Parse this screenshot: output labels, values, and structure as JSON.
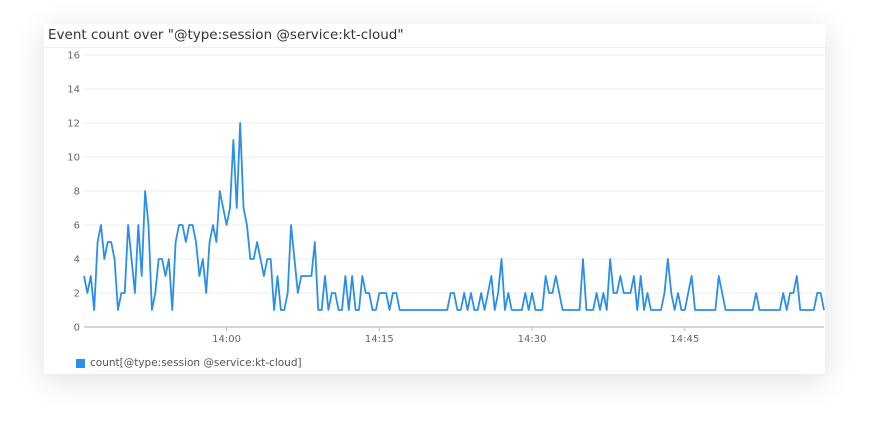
{
  "title": "Event count over \"@type:session @service:kt-cloud\"",
  "colors": {
    "series": "#2b8fe8",
    "grid": "#ececef",
    "axis": "#b9bcc2",
    "text": "#666666"
  },
  "chart_data": {
    "type": "line",
    "title": "Event count over \"@type:session @service:kt-cloud\"",
    "xlabel": "",
    "ylabel": "",
    "x_start": "13:46:00",
    "x_interval_seconds": 20,
    "xlim": [
      "13:46:00",
      "14:58:40"
    ],
    "ylim": [
      0,
      16
    ],
    "grid": true,
    "legend_position": "bottom-left",
    "y_ticks": [
      "0",
      "2",
      "4",
      "6",
      "8",
      "10",
      "12",
      "14",
      "16"
    ],
    "x_ticks": [
      {
        "label": "14:00",
        "time": "14:00:00"
      },
      {
        "label": "14:15",
        "time": "14:15:00"
      },
      {
        "label": "14:30",
        "time": "14:30:00"
      },
      {
        "label": "14:45",
        "time": "14:45:00"
      }
    ],
    "series": [
      {
        "name": "count[@type:session @service:kt-cloud]",
        "values": [
          3,
          2,
          3,
          1,
          5,
          6,
          4,
          5,
          5,
          4,
          1,
          2,
          2,
          6,
          4,
          2,
          6,
          3,
          8,
          6,
          1,
          2,
          4,
          4,
          3,
          4,
          1,
          5,
          6,
          6,
          5,
          6,
          6,
          5,
          3,
          4,
          2,
          5,
          6,
          5,
          8,
          7,
          6,
          7,
          11,
          7,
          12,
          7,
          6,
          4,
          4,
          5,
          4,
          3,
          4,
          4,
          1,
          3,
          1,
          1,
          2,
          6,
          4,
          2,
          3,
          3,
          3,
          3,
          5,
          1,
          1,
          3,
          1,
          2,
          2,
          1,
          1,
          3,
          1,
          3,
          1,
          1,
          3,
          2,
          2,
          1,
          1,
          2,
          2,
          2,
          1,
          2,
          2,
          1,
          1,
          1,
          1,
          1,
          1,
          1,
          1,
          1,
          1,
          1,
          1,
          1,
          1,
          1,
          2,
          2,
          1,
          1,
          2,
          1,
          2,
          1,
          1,
          2,
          1,
          2,
          3,
          1,
          2,
          4,
          1,
          2,
          1,
          1,
          1,
          1,
          2,
          1,
          2,
          1,
          1,
          1,
          3,
          2,
          2,
          3,
          2,
          1,
          1,
          1,
          1,
          1,
          1,
          4,
          1,
          1,
          1,
          2,
          1,
          2,
          1,
          4,
          2,
          2,
          3,
          2,
          2,
          2,
          3,
          1,
          3,
          1,
          2,
          1,
          1,
          1,
          1,
          2,
          4,
          2,
          1,
          2,
          1,
          1,
          2,
          3,
          1,
          1,
          1,
          1,
          1,
          1,
          1,
          3,
          2,
          1,
          1,
          1,
          1,
          1,
          1,
          1,
          1,
          1,
          2,
          1,
          1,
          1,
          1,
          1,
          1,
          1,
          2,
          1,
          2,
          2,
          3,
          1,
          1,
          1,
          1,
          1,
          2,
          2,
          1
        ]
      }
    ]
  }
}
